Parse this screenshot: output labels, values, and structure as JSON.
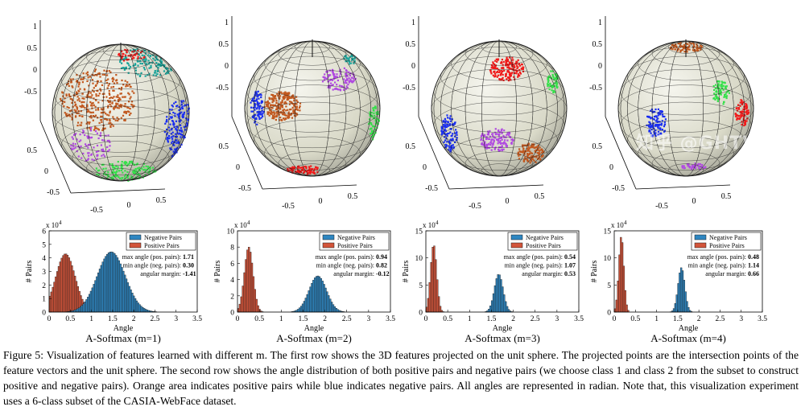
{
  "colors": {
    "negative": "#2e86c1",
    "positive": "#d2543a",
    "sphere_fill": "#d9d9c8",
    "cluster_orange": "#c1581f",
    "cluster_teal": "#1aa39a",
    "cluster_blue": "#1a2ef0",
    "cluster_green": "#35e04a",
    "cluster_violet": "#b04ae0",
    "cluster_red": "#f01a1a"
  },
  "sphere_axis": {
    "z_ticks": [
      "1",
      "0.5",
      "0",
      "-0.5"
    ],
    "left_ticks": [
      "0.5",
      "0",
      "-0.5"
    ],
    "bottom_ticks": [
      "-0.5",
      "0",
      "0.5"
    ]
  },
  "chart_data": [
    {
      "type": "bar",
      "title": "A-Softmax (m=1)",
      "xlabel": "Angle",
      "ylabel": "# Pairs",
      "y_exponent": "x 10",
      "y_exponent_power": "4",
      "xlim": [
        0,
        3.5
      ],
      "ylim": [
        0,
        6
      ],
      "xticks": [
        "0",
        "0.5",
        "1",
        "1.5",
        "2",
        "2.5",
        "3",
        "3.5"
      ],
      "yticks": [
        "0",
        "1",
        "2",
        "3",
        "4",
        "5",
        "6"
      ],
      "legend": [
        "Negative Pairs",
        "Positive Pairs"
      ],
      "stats": [
        {
          "label": "max angle (pos. pairs):",
          "value": "1.71"
        },
        {
          "label": "min angle (neg. pairs):",
          "value": "0.30"
        },
        {
          "label": "angular margin:",
          "value": "-1.41"
        }
      ],
      "series": [
        {
          "name": "Positive Pairs",
          "mean": 0.37,
          "sd": 0.23,
          "peak": 4.3,
          "min": 0.0,
          "max": 1.71
        },
        {
          "name": "Negative Pairs",
          "mean": 1.45,
          "sd": 0.33,
          "peak": 4.45,
          "min": 0.3,
          "max": 2.7
        }
      ]
    },
    {
      "type": "bar",
      "title": "A-Softmax (m=2)",
      "xlabel": "Angle",
      "ylabel": "# Pairs",
      "y_exponent": "x 10",
      "y_exponent_power": "4",
      "xlim": [
        0,
        3.5
      ],
      "ylim": [
        0,
        10
      ],
      "xticks": [
        "0",
        "0.5",
        "1",
        "1.5",
        "2",
        "2.5",
        "3",
        "3.5"
      ],
      "yticks": [
        "0",
        "2",
        "4",
        "6",
        "8",
        "10"
      ],
      "legend": [
        "Negative Pairs",
        "Positive Pairs"
      ],
      "stats": [
        {
          "label": "max angle (pos. pairs):",
          "value": "0.94"
        },
        {
          "label": "min angle (neg. pairs):",
          "value": "0.82"
        },
        {
          "label": "angular margin:",
          "value": "-0.12"
        }
      ],
      "series": [
        {
          "name": "Positive Pairs",
          "mean": 0.24,
          "sd": 0.1,
          "peak": 8.0,
          "min": 0.0,
          "max": 0.94
        },
        {
          "name": "Negative Pairs",
          "mean": 1.82,
          "sd": 0.2,
          "peak": 4.45,
          "min": 0.82,
          "max": 2.6
        }
      ]
    },
    {
      "type": "bar",
      "title": "A-Softmax (m=3)",
      "xlabel": "Angle",
      "ylabel": "# Pairs",
      "y_exponent": "x 10",
      "y_exponent_power": "4",
      "xlim": [
        0,
        3.5
      ],
      "ylim": [
        0,
        15
      ],
      "xticks": [
        "0",
        "0.5",
        "1",
        "1.5",
        "2",
        "2.5",
        "3",
        "3.5"
      ],
      "yticks": [
        "0",
        "5",
        "10",
        "15"
      ],
      "legend": [
        "Negative Pairs",
        "Positive Pairs"
      ],
      "stats": [
        {
          "label": "max angle (pos. pairs):",
          "value": "0.54"
        },
        {
          "label": "min angle (neg. pairs):",
          "value": "1.07"
        },
        {
          "label": "angular margin:",
          "value": "0.53"
        }
      ],
      "series": [
        {
          "name": "Positive Pairs",
          "mean": 0.16,
          "sd": 0.07,
          "peak": 12.5,
          "min": 0.0,
          "max": 0.54
        },
        {
          "name": "Negative Pairs",
          "mean": 1.65,
          "sd": 0.1,
          "peak": 7.0,
          "min": 1.07,
          "max": 2.2
        }
      ]
    },
    {
      "type": "bar",
      "title": "A-Softmax (m=4)",
      "xlabel": "Angle",
      "ylabel": "# Pairs",
      "y_exponent": "x 10",
      "y_exponent_power": "4",
      "xlim": [
        0,
        3.5
      ],
      "ylim": [
        0,
        15
      ],
      "xticks": [
        "0",
        "0.5",
        "1",
        "1.5",
        "2",
        "2.5",
        "3",
        "3.5"
      ],
      "yticks": [
        "0",
        "5",
        "10",
        "15"
      ],
      "legend": [
        "Negative Pairs",
        "Positive Pairs"
      ],
      "stats": [
        {
          "label": "max angle (pos. pairs):",
          "value": "0.48"
        },
        {
          "label": "min angle (neg. pairs):",
          "value": "1.14"
        },
        {
          "label": "angular margin:",
          "value": "0.66"
        }
      ],
      "series": [
        {
          "name": "Positive Pairs",
          "mean": 0.15,
          "sd": 0.06,
          "peak": 14.0,
          "min": 0.0,
          "max": 0.48
        },
        {
          "name": "Negative Pairs",
          "mean": 1.57,
          "sd": 0.08,
          "peak": 8.2,
          "min": 1.14,
          "max": 2.1
        }
      ]
    }
  ],
  "caption": {
    "label": "Figure 5:",
    "text": "Visualization of features learned with different m. The first row shows the 3D features projected on the unit sphere. The projected points are the intersection points of the feature vectors and the unit sphere. The second row shows the angle distribution of both positive pairs and negative pairs (we choose class 1 and class 2 from the subset to construct positive and negative pairs). Orange area indicates positive pairs while blue indicates negative pairs. All angles are represented in radian. Note that, this visualization experiment uses a 6-class subset of the CASIA-WebFace dataset."
  },
  "watermark": "知乎 @GHTW"
}
